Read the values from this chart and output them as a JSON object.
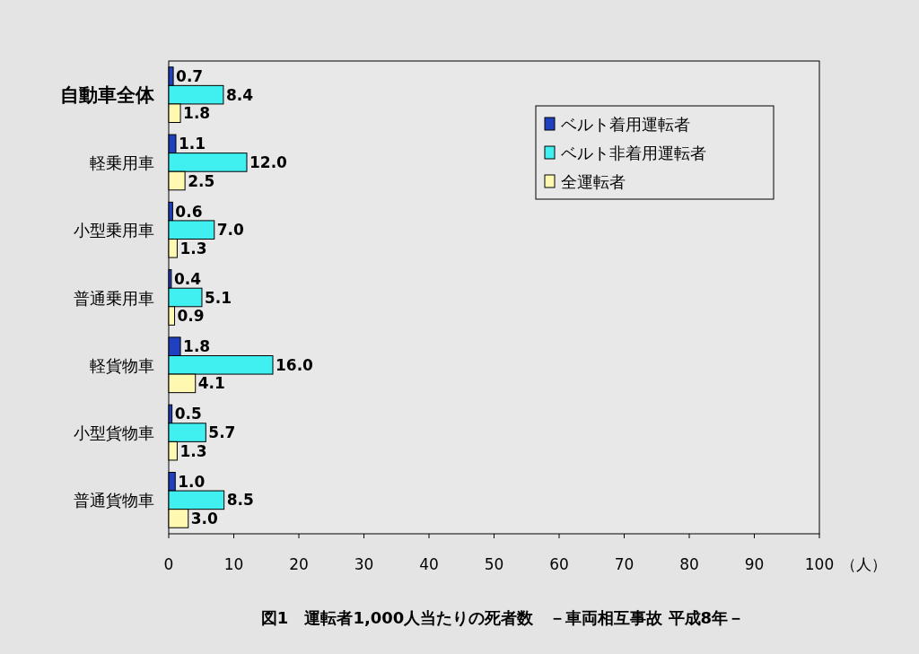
{
  "chart_data": {
    "type": "bar",
    "orientation": "horizontal",
    "title": "図1　運転者1,000人当たりの死者数　－車両相互事故 平成8年－",
    "xlabel": "（人）",
    "categories": [
      "自動車全体",
      "軽乗用車",
      "小型乗用車",
      "普通乗用車",
      "軽貨物車",
      "小型貨物車",
      "普通貨物車"
    ],
    "series": [
      {
        "name": "ベルト着用運転者",
        "color": "#2040c0",
        "values": [
          0.7,
          1.1,
          0.6,
          0.4,
          1.8,
          0.5,
          1.0
        ],
        "value_labels": [
          "0.7",
          "1.1",
          "0.6",
          "0.4",
          "1.8",
          "0.5",
          "1.0"
        ]
      },
      {
        "name": "ベルト非着用運転者",
        "color": "#40f0f0",
        "values": [
          8.4,
          12.0,
          7.0,
          5.1,
          16.0,
          5.7,
          8.5
        ],
        "value_labels": [
          "8.4",
          "12.0",
          "7.0",
          "5.1",
          "16.0",
          "5.7",
          "8.5"
        ]
      },
      {
        "name": "全運転者",
        "color": "#fff8b0",
        "values": [
          1.8,
          2.5,
          1.3,
          0.9,
          4.1,
          1.3,
          3.0
        ],
        "value_labels": [
          "1.8",
          "2.5",
          "1.3",
          "0.9",
          "4.1",
          "1.3",
          "3.0"
        ]
      }
    ],
    "xlim": [
      0,
      100
    ],
    "xticks": [
      0,
      10,
      20,
      30,
      40,
      50,
      60,
      70,
      80,
      90,
      100
    ],
    "legend": "top right"
  }
}
